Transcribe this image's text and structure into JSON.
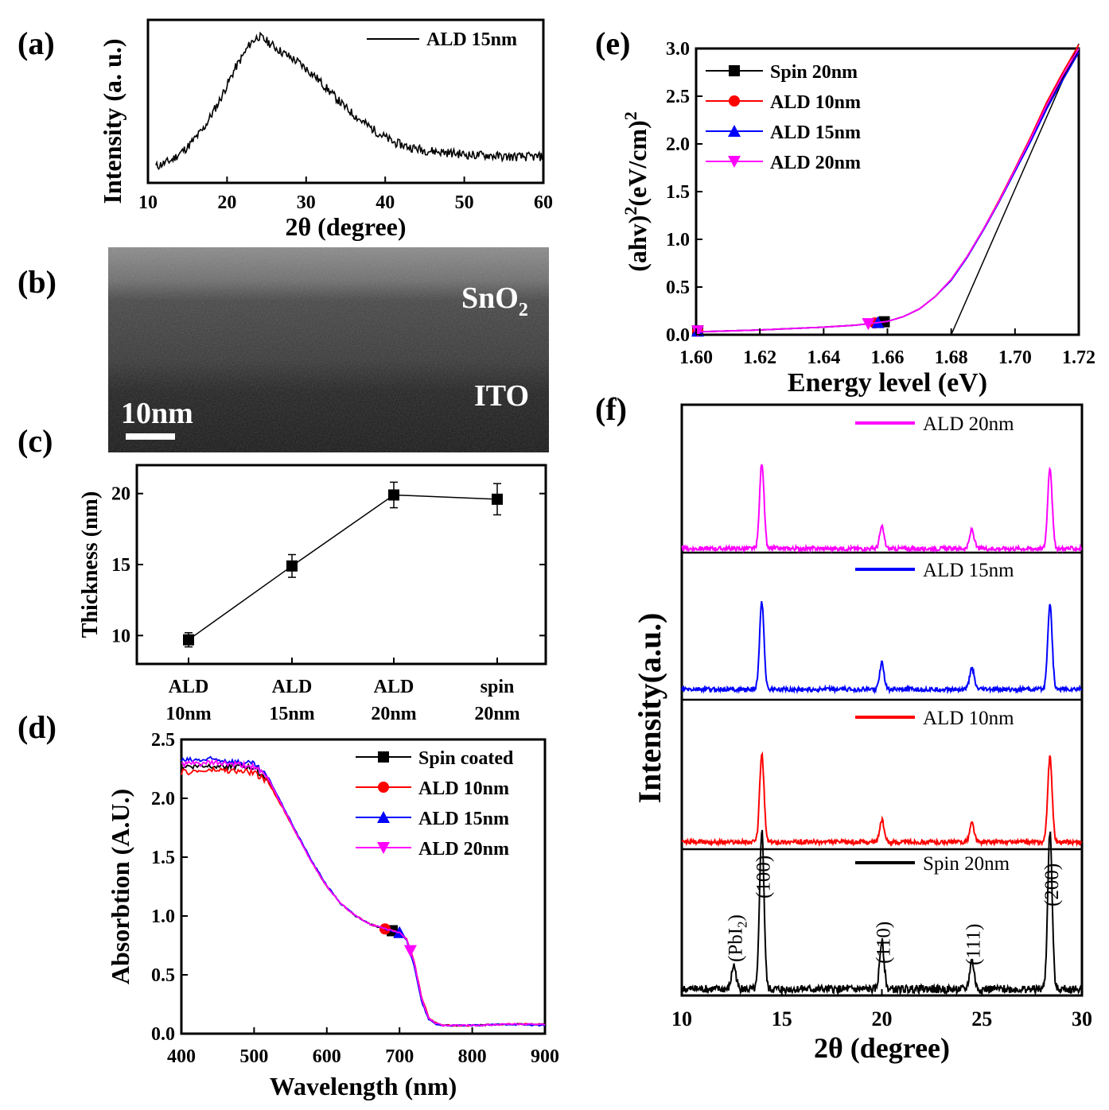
{
  "panel_labels": {
    "a": "(a)",
    "b": "(b)",
    "c": "(c)",
    "d": "(d)",
    "e": "(e)",
    "f": "(f)"
  },
  "tem": {
    "layer_top_main": "SnO",
    "layer_top_sub": "2",
    "layer_bottom": "ITO",
    "scale_bar_label": "10nm"
  },
  "chart_data": [
    {
      "panel": "a",
      "type": "line",
      "title": "",
      "xlabel": "2θ (degree)",
      "ylabel": "Intensity (a. u.)",
      "xlim": [
        10,
        60
      ],
      "xticks": [
        "10",
        "20",
        "30",
        "40",
        "50",
        "60"
      ],
      "series": [
        {
          "name": "ALD 15nm",
          "color": "#000000",
          "x": [
            11,
            13,
            15,
            17,
            19,
            21,
            23,
            24,
            25,
            27,
            29,
            31,
            33,
            35,
            37,
            39,
            41,
            43,
            45,
            47,
            49,
            51,
            53,
            55,
            57,
            59
          ],
          "y": [
            0.1,
            0.14,
            0.22,
            0.33,
            0.5,
            0.7,
            0.86,
            0.9,
            0.87,
            0.8,
            0.74,
            0.66,
            0.56,
            0.46,
            0.38,
            0.31,
            0.25,
            0.22,
            0.2,
            0.19,
            0.18,
            0.17,
            0.17,
            0.16,
            0.16,
            0.16
          ]
        }
      ]
    },
    {
      "panel": "c",
      "type": "line",
      "title": "",
      "xlabel": "",
      "ylabel": "Thickness (nm)",
      "ylim": [
        8,
        22
      ],
      "yticks": [
        "10",
        "15",
        "20"
      ],
      "categories": [
        [
          "ALD",
          "10nm"
        ],
        [
          "ALD",
          "15nm"
        ],
        [
          "ALD",
          "20nm"
        ],
        [
          "spin",
          "20nm"
        ]
      ],
      "values": [
        9.7,
        14.9,
        19.9,
        19.6
      ],
      "errors": [
        0.5,
        0.8,
        0.9,
        1.1
      ]
    },
    {
      "panel": "d",
      "type": "line",
      "title": "",
      "xlabel": "Wavelength (nm)",
      "ylabel": "Absorbtion (A.U.)",
      "xlim": [
        400,
        900
      ],
      "ylim": [
        0,
        2.5
      ],
      "xticks": [
        "400",
        "500",
        "600",
        "700",
        "800",
        "900"
      ],
      "yticks": [
        "0.0",
        "0.5",
        "1.0",
        "1.5",
        "2.0",
        "2.5"
      ],
      "x": [
        400,
        450,
        500,
        520,
        540,
        560,
        580,
        600,
        620,
        640,
        660,
        680,
        700,
        710,
        720,
        730,
        740,
        750,
        760,
        800,
        850,
        900
      ],
      "series": [
        {
          "name": "Spin coated",
          "color": "#000000",
          "marker": "square",
          "marker_x": 690,
          "values": [
            2.27,
            2.28,
            2.26,
            2.15,
            1.92,
            1.68,
            1.45,
            1.25,
            1.1,
            1.0,
            0.93,
            0.89,
            0.86,
            0.8,
            0.6,
            0.3,
            0.13,
            0.09,
            0.07,
            0.07,
            0.08,
            0.08
          ]
        },
        {
          "name": "ALD 10nm",
          "color": "#ff0000",
          "marker": "circle",
          "marker_x": 680,
          "values": [
            2.22,
            2.24,
            2.22,
            2.13,
            1.91,
            1.68,
            1.45,
            1.25,
            1.1,
            1.0,
            0.93,
            0.89,
            0.86,
            0.8,
            0.62,
            0.32,
            0.14,
            0.09,
            0.07,
            0.07,
            0.08,
            0.08
          ]
        },
        {
          "name": "ALD 15nm",
          "color": "#0000ff",
          "marker": "triangle",
          "marker_x": 700,
          "values": [
            2.32,
            2.33,
            2.29,
            2.17,
            1.93,
            1.69,
            1.46,
            1.26,
            1.1,
            1.0,
            0.93,
            0.89,
            0.86,
            0.79,
            0.58,
            0.28,
            0.12,
            0.08,
            0.07,
            0.07,
            0.08,
            0.07
          ]
        },
        {
          "name": "ALD 20nm",
          "color": "#ff00ff",
          "marker": "triangle-down",
          "marker_x": 715,
          "values": [
            2.29,
            2.3,
            2.27,
            2.16,
            1.92,
            1.68,
            1.45,
            1.25,
            1.1,
            1.0,
            0.93,
            0.89,
            0.86,
            0.8,
            0.61,
            0.31,
            0.13,
            0.09,
            0.07,
            0.07,
            0.08,
            0.08
          ]
        }
      ]
    },
    {
      "panel": "e",
      "type": "line",
      "title": "",
      "xlabel": "Energy level (eV)",
      "ylabel_main": "(ahv)",
      "ylabel_sup1": "2",
      "ylabel_mid": "(eV/cm)",
      "ylabel_sup2": "2",
      "xlim": [
        1.6,
        1.72
      ],
      "ylim": [
        0,
        3.0
      ],
      "xticks": [
        "1.60",
        "1.62",
        "1.64",
        "1.66",
        "1.68",
        "1.70",
        "1.72"
      ],
      "yticks": [
        "0.0",
        "0.5",
        "1.0",
        "1.5",
        "2.0",
        "2.5",
        "3.0"
      ],
      "x": [
        1.6,
        1.62,
        1.64,
        1.65,
        1.66,
        1.665,
        1.67,
        1.675,
        1.68,
        1.685,
        1.69,
        1.695,
        1.7,
        1.705,
        1.71,
        1.715,
        1.72
      ],
      "series": [
        {
          "name": "Spin 20nm",
          "color": "#000000",
          "marker": "square",
          "marker_x": 1.659,
          "values": [
            0.03,
            0.05,
            0.08,
            0.1,
            0.14,
            0.19,
            0.27,
            0.4,
            0.58,
            0.82,
            1.1,
            1.4,
            1.72,
            2.05,
            2.4,
            2.7,
            2.98
          ]
        },
        {
          "name": "ALD 10nm",
          "color": "#ff0000",
          "marker": "circle",
          "marker_x": 1.656,
          "values": [
            0.03,
            0.05,
            0.08,
            0.1,
            0.14,
            0.19,
            0.27,
            0.4,
            0.58,
            0.82,
            1.1,
            1.41,
            1.74,
            2.08,
            2.44,
            2.75,
            3.04
          ]
        },
        {
          "name": "ALD 15nm",
          "color": "#0000ff",
          "marker": "triangle",
          "marker_x": 1.657,
          "values": [
            0.03,
            0.05,
            0.08,
            0.1,
            0.14,
            0.19,
            0.27,
            0.4,
            0.57,
            0.81,
            1.09,
            1.39,
            1.71,
            2.03,
            2.37,
            2.67,
            2.96
          ]
        },
        {
          "name": "ALD 20nm",
          "color": "#ff00ff",
          "marker": "triangle-down",
          "marker_x": 1.654,
          "values": [
            0.03,
            0.05,
            0.08,
            0.1,
            0.14,
            0.19,
            0.27,
            0.4,
            0.58,
            0.82,
            1.1,
            1.4,
            1.73,
            2.06,
            2.41,
            2.72,
            3.0
          ]
        }
      ],
      "annotation": "linear extrapolation from (1.680, 0) to (1.720, 3.05)"
    },
    {
      "panel": "f",
      "type": "line",
      "title": "",
      "xlabel": "2θ (degree)",
      "ylabel": "Intensity(a.u.)",
      "xlim": [
        10,
        30
      ],
      "xticks": [
        "10",
        "15",
        "20",
        "25",
        "30"
      ],
      "peaks": [
        {
          "pos": 12.6,
          "label_main": "(PbI",
          "label_sub": "2",
          "label_end": ")"
        },
        {
          "pos": 14.0,
          "label_main": "(100)",
          "label_sub": "",
          "label_end": ""
        },
        {
          "pos": 20.0,
          "label_main": "(110)",
          "label_sub": "",
          "label_end": ""
        },
        {
          "pos": 24.5,
          "label_main": "(111)",
          "label_sub": "",
          "label_end": ""
        },
        {
          "pos": 28.4,
          "label_main": "(200)",
          "label_sub": "",
          "label_end": ""
        }
      ],
      "series": [
        {
          "name": "ALD 20nm",
          "color": "#ff00ff",
          "peak_heights": [
            0.0,
            1.0,
            0.25,
            0.22,
            0.95
          ]
        },
        {
          "name": "ALD 15nm",
          "color": "#0000ff",
          "peak_heights": [
            0.0,
            1.0,
            0.3,
            0.25,
            0.98
          ]
        },
        {
          "name": "ALD 10nm",
          "color": "#ff0000",
          "peak_heights": [
            0.0,
            1.0,
            0.25,
            0.22,
            0.98
          ]
        },
        {
          "name": "Spin 20nm",
          "color": "#000000",
          "peak_heights": [
            0.15,
            1.0,
            0.3,
            0.18,
            0.99
          ]
        }
      ]
    }
  ]
}
